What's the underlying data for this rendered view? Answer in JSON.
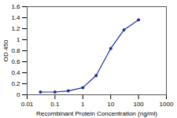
{
  "chart_data": {
    "type": "line",
    "x": [
      0.03,
      0.1,
      0.3,
      1,
      3,
      10,
      30,
      100
    ],
    "values": [
      0.05,
      0.05,
      0.07,
      0.13,
      0.35,
      0.84,
      1.18,
      1.36
    ],
    "color": "#1f2f96",
    "marker": "circle",
    "log": "x",
    "grid": false,
    "xlabel": "Recombinant Protein Concentration (ng/ml)",
    "ylabel": "OD 450",
    "xlim": [
      0.01,
      1000
    ],
    "xticks": [
      0.01,
      0.1,
      1,
      10,
      100,
      1000
    ],
    "ylim": [
      0,
      1.6
    ],
    "yticks": [
      0,
      0.2,
      0.4,
      0.6,
      0.8,
      1,
      1.2,
      1.4,
      1.6
    ]
  }
}
